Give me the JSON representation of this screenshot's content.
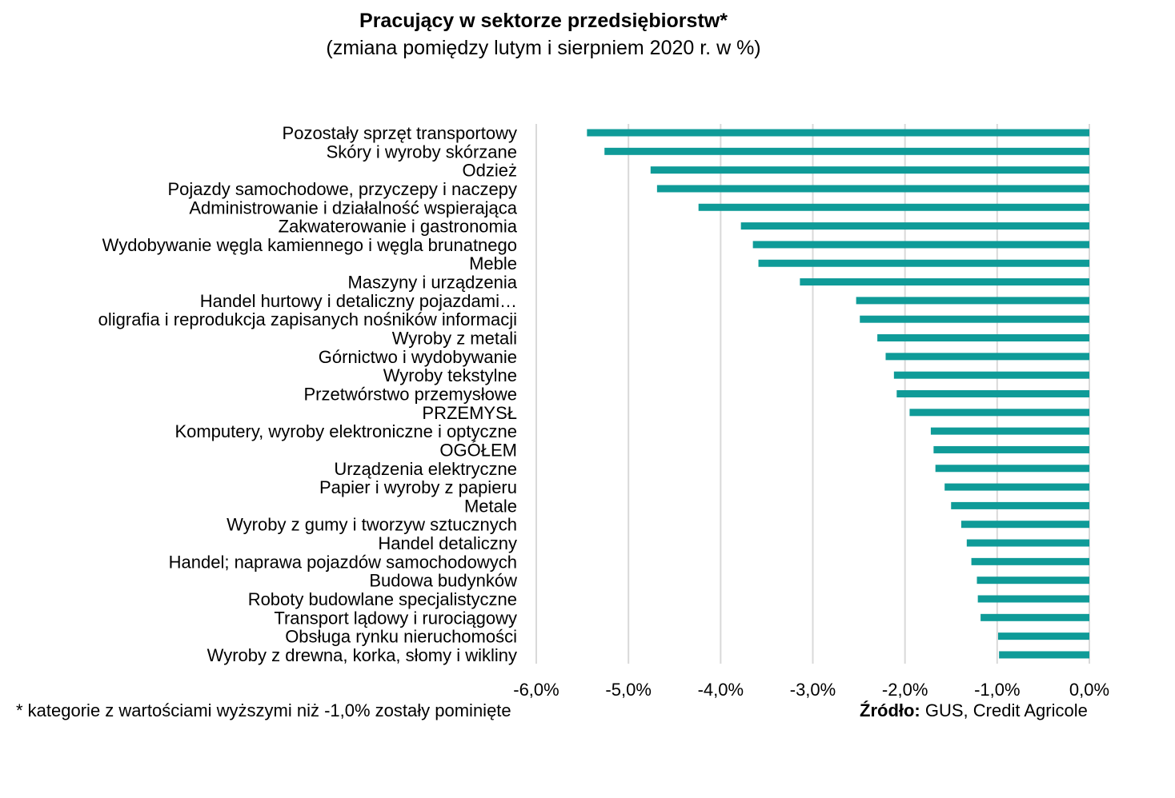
{
  "chart_data": {
    "type": "bar",
    "orientation": "horizontal",
    "title": "Pracujący w sektorze przedsiębiorstw*",
    "subtitle": "(zmiana pomiędzy lutym i sierpniem 2020 r. w %)",
    "categories": [
      "Pozostały sprzęt transportowy",
      "Skóry i wyroby skórzane",
      "Odzież",
      "Pojazdy samochodowe, przyczepy i naczepy",
      "Administrowanie i działalność wspierająca",
      "Zakwaterowanie i gastronomia",
      "Wydobywanie węgla kamiennego i węgla brunatnego",
      "Meble",
      "Maszyny i urządzenia",
      "Handel hurtowy i detaliczny pojazdami…",
      "oligrafia i reprodukcja zapisanych nośników informacji",
      "Wyroby z metali",
      "Górnictwo i wydobywanie",
      "Wyroby tekstylne",
      "Przetwórstwo przemysłowe",
      "PRZEMYSŁ",
      "Komputery, wyroby elektroniczne i optyczne",
      "OGÓŁEM",
      "Urządzenia elektryczne",
      "Papier i wyroby z papieru",
      "Metale",
      "Wyroby z gumy i tworzyw sztucznych",
      "Handel detaliczny",
      "Handel; naprawa pojazdów samochodowych",
      "Budowa budynków",
      "Roboty budowlane specjalistyczne",
      "Transport lądowy i rurociągowy",
      "Obsługa rynku nieruchomości",
      "Wyroby z drewna, korka, słomy i wikliny"
    ],
    "values": [
      -5.45,
      -5.26,
      -4.76,
      -4.69,
      -4.24,
      -3.78,
      -3.65,
      -3.59,
      -3.14,
      -2.53,
      -2.49,
      -2.3,
      -2.21,
      -2.12,
      -2.09,
      -1.95,
      -1.72,
      -1.69,
      -1.67,
      -1.57,
      -1.5,
      -1.39,
      -1.33,
      -1.28,
      -1.22,
      -1.21,
      -1.18,
      -0.99,
      -0.98
    ],
    "xlim": [
      -6.0,
      0.0
    ],
    "xticks": [
      "-6,0%",
      "-5,0%",
      "-4,0%",
      "-3,0%",
      "-2,0%",
      "-1,0%",
      "0,0%"
    ],
    "xtick_values": [
      -6,
      -5,
      -4,
      -3,
      -2,
      -1,
      0
    ],
    "grid": "vertical",
    "bar_color": "#0f9b98",
    "grid_color": "#d9d9d9"
  },
  "footnote": "* kategorie z wartościami wyższymi niż -1,0% zostały pominięte",
  "source_label": "Źródło:",
  "source_text": " GUS, Credit Agricole"
}
